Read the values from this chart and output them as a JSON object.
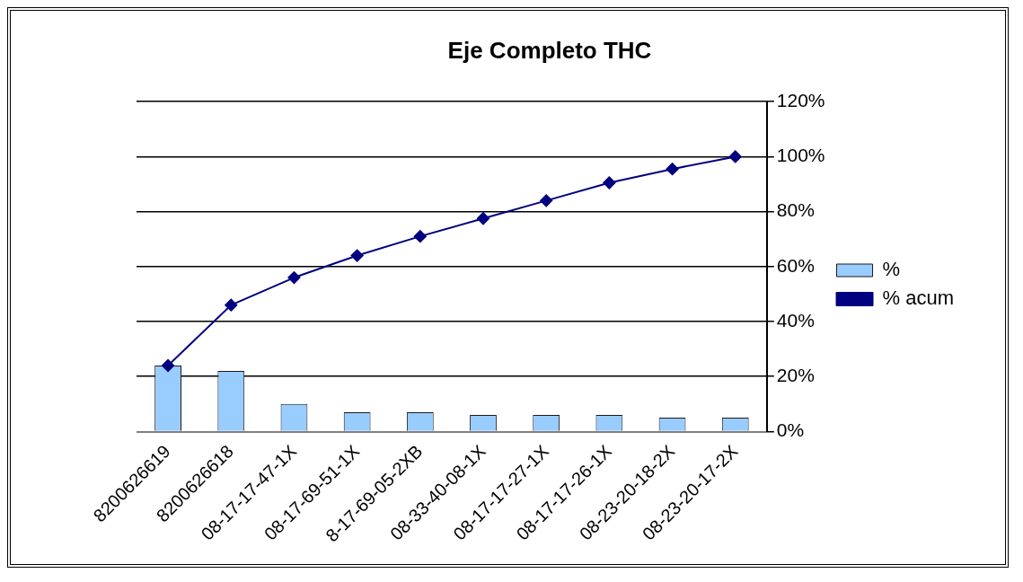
{
  "chart_data": {
    "type": "bar",
    "title": "Eje Completo THC",
    "categories": [
      "8200626619",
      "8200626618",
      "08-17-17-47-1X",
      "08-17-69-51-1X",
      "8-17-69-05-2XB",
      "08-33-40-08-1X",
      "08-17-17-27-1X",
      "08-17-17-26-1X",
      "08-23-20-18-2X",
      "08-23-20-17-2X"
    ],
    "series": [
      {
        "name": "%",
        "color": "#99ccff",
        "values": [
          24,
          22,
          10,
          7,
          7,
          6,
          6,
          6,
          5,
          5
        ]
      },
      {
        "name": "% acum",
        "type": "line",
        "color": "#000080",
        "marker": "diamond",
        "values": [
          24,
          46,
          56,
          64,
          71,
          77.5,
          84,
          90.5,
          95.5,
          100
        ]
      }
    ],
    "ylim": [
      0,
      120
    ],
    "yticks": [
      {
        "value": 0,
        "label": "0%"
      },
      {
        "value": 20,
        "label": "20%"
      },
      {
        "value": 40,
        "label": "40%"
      },
      {
        "value": 60,
        "label": "60%"
      },
      {
        "value": 80,
        "label": "80%"
      },
      {
        "value": 100,
        "label": "100%"
      },
      {
        "value": 120,
        "label": "120%"
      }
    ],
    "grid": "y",
    "legend": "right"
  }
}
